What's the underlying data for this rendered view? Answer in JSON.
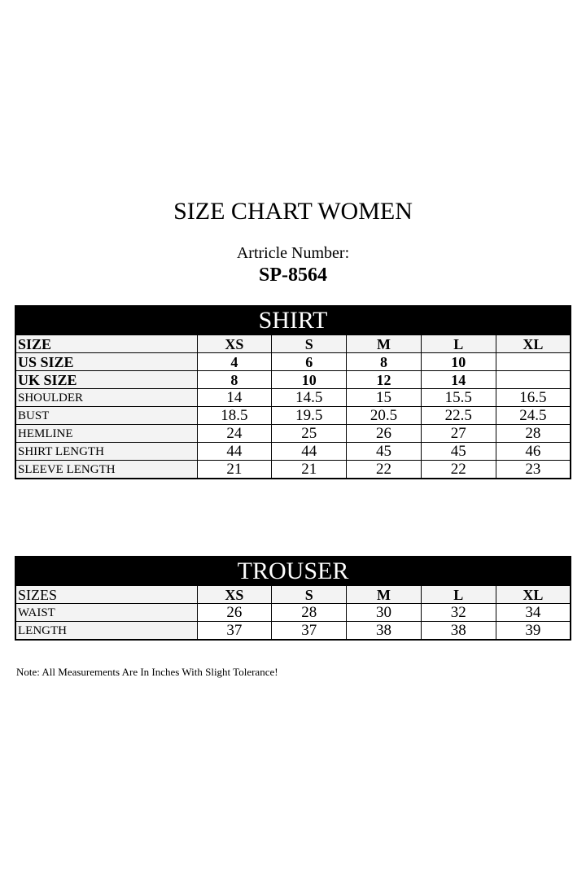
{
  "title": "SIZE CHART WOMEN",
  "article_label": "Artricle Number:",
  "article_number": "SP-8564",
  "shirt": {
    "banner": "SHIRT",
    "header": [
      "SIZE",
      "XS",
      "S",
      "M",
      "L",
      "XL"
    ],
    "rows": [
      [
        "US SIZE",
        "4",
        "6",
        "8",
        "10",
        ""
      ],
      [
        "UK SIZE",
        "8",
        "10",
        "12",
        "14",
        ""
      ],
      [
        "SHOULDER",
        "14",
        "14.5",
        "15",
        "15.5",
        "16.5"
      ],
      [
        "BUST",
        "18.5",
        "19.5",
        "20.5",
        "22.5",
        "24.5"
      ],
      [
        "HEMLINE",
        "24",
        "25",
        "26",
        "27",
        "28"
      ],
      [
        "SHIRT LENGTH",
        "44",
        "44",
        "45",
        "45",
        "46"
      ],
      [
        "SLEEVE LENGTH",
        "21",
        "21",
        "22",
        "22",
        "23"
      ]
    ]
  },
  "trouser": {
    "banner": "TROUSER",
    "header": [
      "SIZES",
      "XS",
      "S",
      "M",
      "L",
      "XL"
    ],
    "rows": [
      [
        "WAIST",
        "26",
        "28",
        "30",
        "32",
        "34"
      ],
      [
        "LENGTH",
        "37",
        "37",
        "38",
        "38",
        "39"
      ]
    ]
  },
  "note": "Note: All Measurements Are In Inches With Slight Tolerance!"
}
